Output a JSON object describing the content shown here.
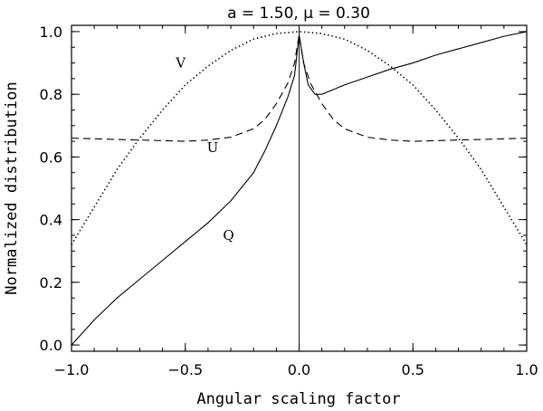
{
  "chart_data": {
    "type": "line",
    "title": "a = 1.50,    μ = 0.30",
    "xlabel": "Angular scaling factor",
    "ylabel": "Normalized distribution",
    "xlim": [
      -1.0,
      1.0
    ],
    "ylim": [
      -0.02,
      1.02
    ],
    "xticks": [
      -1.0,
      -0.5,
      0.0,
      0.5,
      1.0
    ],
    "xtick_labels": [
      "−1.0",
      "−0.5",
      "0.0",
      "0.5",
      "1.0"
    ],
    "yticks": [
      0.0,
      0.2,
      0.4,
      0.6,
      0.8,
      1.0
    ],
    "ytick_labels": [
      "0.0",
      "0.2",
      "0.4",
      "0.6",
      "0.8",
      "1.0"
    ],
    "grid": false,
    "reference_line_x": 0.0,
    "series": [
      {
        "name": "V",
        "style": "dotted",
        "x": [
          -1.0,
          -0.9,
          -0.8,
          -0.7,
          -0.6,
          -0.5,
          -0.4,
          -0.3,
          -0.2,
          -0.1,
          0.0,
          0.1,
          0.2,
          0.3,
          0.4,
          0.5,
          0.6,
          0.7,
          0.8,
          0.9,
          1.0
        ],
        "y": [
          0.32,
          0.44,
          0.56,
          0.66,
          0.75,
          0.83,
          0.89,
          0.94,
          0.976,
          0.994,
          1.0,
          0.994,
          0.976,
          0.94,
          0.89,
          0.83,
          0.75,
          0.66,
          0.56,
          0.44,
          0.32
        ]
      },
      {
        "name": "U",
        "style": "dashed",
        "x": [
          -1.0,
          -0.8,
          -0.6,
          -0.5,
          -0.4,
          -0.3,
          -0.2,
          -0.15,
          -0.1,
          -0.05,
          -0.02,
          0.0,
          0.02,
          0.05,
          0.1,
          0.15,
          0.2,
          0.3,
          0.4,
          0.5,
          0.6,
          0.8,
          1.0
        ],
        "y": [
          0.66,
          0.656,
          0.652,
          0.65,
          0.654,
          0.663,
          0.69,
          0.72,
          0.77,
          0.835,
          0.9,
          0.99,
          0.9,
          0.835,
          0.77,
          0.72,
          0.69,
          0.663,
          0.654,
          0.65,
          0.652,
          0.656,
          0.66
        ]
      },
      {
        "name": "Q",
        "style": "solid",
        "x": [
          -1.0,
          -0.9,
          -0.8,
          -0.7,
          -0.6,
          -0.5,
          -0.4,
          -0.3,
          -0.2,
          -0.15,
          -0.1,
          -0.05,
          -0.02,
          0.0,
          0.02,
          0.04,
          0.07,
          0.1,
          0.15,
          0.2,
          0.3,
          0.4,
          0.5,
          0.6,
          0.7,
          0.8,
          0.9,
          1.0
        ],
        "y": [
          0.0,
          0.08,
          0.15,
          0.21,
          0.27,
          0.33,
          0.39,
          0.46,
          0.55,
          0.62,
          0.7,
          0.79,
          0.86,
          0.99,
          0.9,
          0.83,
          0.8,
          0.8,
          0.815,
          0.83,
          0.855,
          0.88,
          0.9,
          0.925,
          0.945,
          0.965,
          0.985,
          1.0
        ]
      }
    ],
    "annotations": [
      {
        "text": "V",
        "x": -0.52,
        "y": 0.885
      },
      {
        "text": "U",
        "x": -0.38,
        "y": 0.615
      },
      {
        "text": "Q",
        "x": -0.31,
        "y": 0.335
      }
    ]
  }
}
